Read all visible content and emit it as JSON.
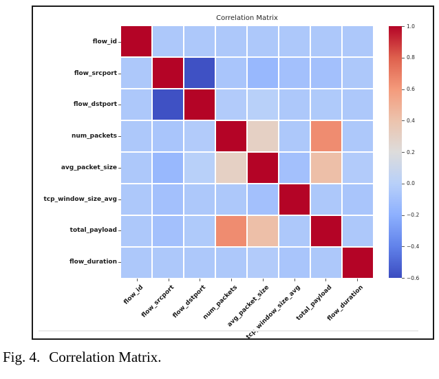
{
  "figure": {
    "caption_label": "Fig. 4.",
    "caption_text": "Correlation Matrix."
  },
  "chart_data": {
    "type": "heatmap",
    "title": "Correlation Matrix",
    "labels": [
      "flow_id",
      "flow_srcport",
      "flow_dstport",
      "num_packets",
      "avg_packet_size",
      "tcp_window_size_avg",
      "total_payload",
      "flow_duration"
    ],
    "matrix": [
      [
        1.0,
        -0.05,
        -0.05,
        -0.05,
        -0.05,
        -0.05,
        -0.05,
        -0.05
      ],
      [
        -0.05,
        1.0,
        -0.58,
        -0.07,
        -0.15,
        -0.1,
        -0.1,
        -0.05
      ],
      [
        -0.05,
        -0.58,
        1.0,
        -0.03,
        0.0,
        -0.05,
        -0.04,
        -0.05
      ],
      [
        -0.05,
        -0.07,
        -0.03,
        1.0,
        0.3,
        -0.05,
        0.65,
        -0.05
      ],
      [
        -0.05,
        -0.15,
        0.0,
        0.3,
        1.0,
        -0.1,
        0.42,
        -0.03
      ],
      [
        -0.05,
        -0.1,
        -0.05,
        -0.05,
        -0.1,
        1.0,
        -0.05,
        -0.07
      ],
      [
        -0.05,
        -0.1,
        -0.04,
        0.65,
        0.42,
        -0.05,
        1.0,
        -0.05
      ],
      [
        -0.05,
        -0.05,
        -0.05,
        -0.05,
        -0.03,
        -0.07,
        -0.05,
        1.0
      ]
    ],
    "vmin": -0.6,
    "vmax": 1.0,
    "colormap": "coolwarm",
    "colorbar_ticks": [
      "1.0",
      "0.8",
      "0.6",
      "0.4",
      "0.2",
      "0.0",
      "−0.2",
      "−0.4",
      "−0.6"
    ],
    "colorbar_position": "right",
    "grid": false
  },
  "colors": {
    "colormap_max": "#b40426",
    "colormap_min": "#3b4cc0",
    "cell_gap": "#ffffff",
    "frame_border": "#1a1a1a"
  }
}
